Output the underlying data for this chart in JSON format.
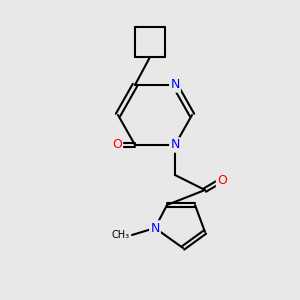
{
  "background_color": "#e8e8e8",
  "bond_color": "#000000",
  "bond_width": 1.5,
  "atom_colors": {
    "N": "#0000ff",
    "O": "#ff0000",
    "C": "#000000"
  },
  "font_size": 9,
  "fig_size": [
    3.0,
    3.0
  ],
  "dpi": 100
}
